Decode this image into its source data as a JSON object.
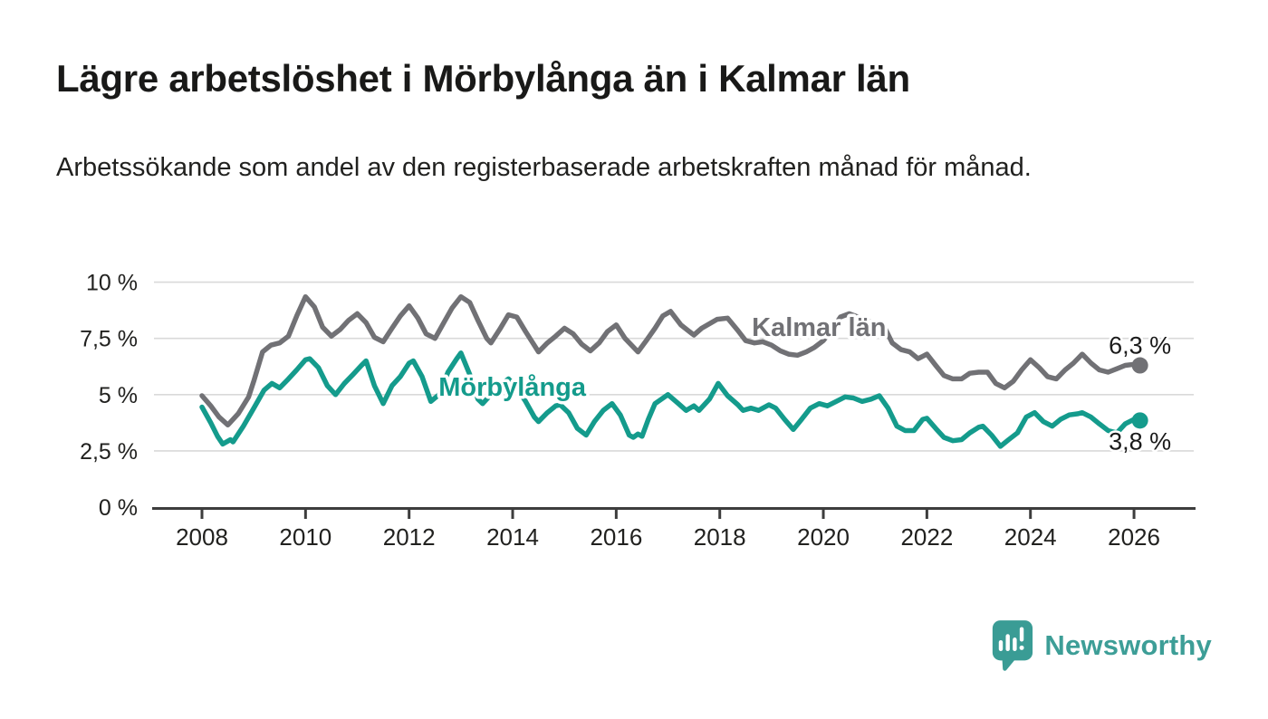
{
  "header": {
    "title": "Lägre arbetslöshet i Mörbylånga än i Kalmar län",
    "subtitle": "Arbetssökande som andel av den registerbaserade arbetskraften månad för månad."
  },
  "footer": {
    "brand_name": "Newsworthy",
    "logo_icon": "bar-chart-speech-bubble-icon"
  },
  "colors": {
    "kalmar_line": "#717175",
    "morbylanga_line": "#149b8c",
    "axis": "#3d3d3d",
    "grid": "#d9d9d9",
    "tick_text": "#21211f",
    "end_label_text": "#1a1a1a",
    "brand": "#3d9e97",
    "background": "#ffffff"
  },
  "chart_data": {
    "type": "line",
    "title": "Lägre arbetslöshet i Mörbylånga än i Kalmar län",
    "xlabel": "",
    "ylabel": "",
    "unit": "%",
    "grid": true,
    "legend_position": "inline-labels",
    "x_axis": {
      "range": [
        2007.1,
        2027.2
      ],
      "ticks": [
        2008,
        2010,
        2012,
        2014,
        2016,
        2018,
        2020,
        2022,
        2024,
        2026
      ]
    },
    "y_axis": {
      "range": [
        0,
        10
      ],
      "ticks": [
        {
          "value": 0,
          "label": "0 %"
        },
        {
          "value": 2.5,
          "label": "2,5 %"
        },
        {
          "value": 5,
          "label": "5 %"
        },
        {
          "value": 7.5,
          "label": "7,5 %"
        },
        {
          "value": 10,
          "label": "10 %"
        }
      ]
    },
    "series": [
      {
        "name": "Kalmar län",
        "color": "#717175",
        "end_label": "6,3 %",
        "end_value": 6.3,
        "end_label_position": "above",
        "label_anchor": {
          "year": 2018.62,
          "value": 7.6
        },
        "points": [
          [
            2008.0,
            4.95
          ],
          [
            2008.17,
            4.5
          ],
          [
            2008.33,
            4.0
          ],
          [
            2008.5,
            3.65
          ],
          [
            2008.7,
            4.15
          ],
          [
            2008.9,
            4.9
          ],
          [
            2009.0,
            5.6
          ],
          [
            2009.17,
            6.9
          ],
          [
            2009.33,
            7.2
          ],
          [
            2009.5,
            7.3
          ],
          [
            2009.67,
            7.6
          ],
          [
            2009.83,
            8.5
          ],
          [
            2010.0,
            9.35
          ],
          [
            2010.17,
            8.9
          ],
          [
            2010.33,
            8.0
          ],
          [
            2010.5,
            7.6
          ],
          [
            2010.67,
            7.9
          ],
          [
            2010.83,
            8.3
          ],
          [
            2011.0,
            8.6
          ],
          [
            2011.17,
            8.2
          ],
          [
            2011.33,
            7.55
          ],
          [
            2011.5,
            7.35
          ],
          [
            2011.67,
            7.95
          ],
          [
            2011.83,
            8.5
          ],
          [
            2012.0,
            8.95
          ],
          [
            2012.17,
            8.4
          ],
          [
            2012.33,
            7.7
          ],
          [
            2012.5,
            7.5
          ],
          [
            2012.67,
            8.2
          ],
          [
            2012.83,
            8.85
          ],
          [
            2013.0,
            9.35
          ],
          [
            2013.17,
            9.1
          ],
          [
            2013.33,
            8.3
          ],
          [
            2013.5,
            7.5
          ],
          [
            2013.58,
            7.3
          ],
          [
            2013.75,
            7.9
          ],
          [
            2013.92,
            8.55
          ],
          [
            2014.08,
            8.45
          ],
          [
            2014.25,
            7.8
          ],
          [
            2014.5,
            6.9
          ],
          [
            2014.67,
            7.3
          ],
          [
            2014.83,
            7.6
          ],
          [
            2015.0,
            7.95
          ],
          [
            2015.17,
            7.7
          ],
          [
            2015.33,
            7.25
          ],
          [
            2015.5,
            6.95
          ],
          [
            2015.67,
            7.3
          ],
          [
            2015.83,
            7.8
          ],
          [
            2016.0,
            8.1
          ],
          [
            2016.17,
            7.5
          ],
          [
            2016.42,
            6.9
          ],
          [
            2016.58,
            7.4
          ],
          [
            2016.75,
            7.95
          ],
          [
            2016.9,
            8.5
          ],
          [
            2017.05,
            8.7
          ],
          [
            2017.25,
            8.1
          ],
          [
            2017.5,
            7.65
          ],
          [
            2017.65,
            7.95
          ],
          [
            2017.95,
            8.35
          ],
          [
            2018.15,
            8.4
          ],
          [
            2018.35,
            7.85
          ],
          [
            2018.5,
            7.4
          ],
          [
            2018.67,
            7.3
          ],
          [
            2018.83,
            7.35
          ],
          [
            2019.0,
            7.2
          ],
          [
            2019.17,
            6.95
          ],
          [
            2019.33,
            6.8
          ],
          [
            2019.5,
            6.75
          ],
          [
            2019.67,
            6.9
          ],
          [
            2019.83,
            7.1
          ],
          [
            2020.0,
            7.4
          ],
          [
            2020.17,
            7.9
          ],
          [
            2020.33,
            8.45
          ],
          [
            2020.5,
            8.6
          ],
          [
            2020.67,
            8.45
          ],
          [
            2020.83,
            8.3
          ],
          [
            2021.0,
            8.15
          ],
          [
            2021.17,
            8.05
          ],
          [
            2021.33,
            7.3
          ],
          [
            2021.5,
            7.0
          ],
          [
            2021.67,
            6.9
          ],
          [
            2021.83,
            6.6
          ],
          [
            2022.0,
            6.8
          ],
          [
            2022.17,
            6.3
          ],
          [
            2022.33,
            5.85
          ],
          [
            2022.5,
            5.7
          ],
          [
            2022.67,
            5.7
          ],
          [
            2022.83,
            5.95
          ],
          [
            2023.0,
            6.0
          ],
          [
            2023.17,
            6.0
          ],
          [
            2023.33,
            5.5
          ],
          [
            2023.5,
            5.3
          ],
          [
            2023.67,
            5.6
          ],
          [
            2023.83,
            6.1
          ],
          [
            2024.0,
            6.55
          ],
          [
            2024.17,
            6.2
          ],
          [
            2024.33,
            5.8
          ],
          [
            2024.5,
            5.7
          ],
          [
            2024.67,
            6.1
          ],
          [
            2024.83,
            6.4
          ],
          [
            2025.0,
            6.8
          ],
          [
            2025.17,
            6.4
          ],
          [
            2025.33,
            6.1
          ],
          [
            2025.5,
            6.0
          ],
          [
            2025.67,
            6.15
          ],
          [
            2025.83,
            6.3
          ],
          [
            2026.0,
            6.35
          ],
          [
            2026.08,
            6.3
          ]
        ]
      },
      {
        "name": "Mörbylånga",
        "color": "#149b8c",
        "end_label": "3,8 %",
        "end_value": 3.8,
        "end_label_position": "below",
        "label_anchor": {
          "year": 2012.57,
          "value": 4.95
        },
        "points": [
          [
            2008.0,
            4.45
          ],
          [
            2008.17,
            3.75
          ],
          [
            2008.3,
            3.15
          ],
          [
            2008.4,
            2.8
          ],
          [
            2008.55,
            3.0
          ],
          [
            2008.6,
            2.9
          ],
          [
            2008.8,
            3.6
          ],
          [
            2009.0,
            4.4
          ],
          [
            2009.2,
            5.2
          ],
          [
            2009.35,
            5.5
          ],
          [
            2009.5,
            5.3
          ],
          [
            2009.67,
            5.7
          ],
          [
            2009.83,
            6.1
          ],
          [
            2010.0,
            6.55
          ],
          [
            2010.08,
            6.6
          ],
          [
            2010.25,
            6.2
          ],
          [
            2010.42,
            5.4
          ],
          [
            2010.58,
            5.0
          ],
          [
            2010.75,
            5.5
          ],
          [
            2010.92,
            5.9
          ],
          [
            2011.08,
            6.3
          ],
          [
            2011.17,
            6.5
          ],
          [
            2011.33,
            5.4
          ],
          [
            2011.5,
            4.6
          ],
          [
            2011.67,
            5.4
          ],
          [
            2011.83,
            5.8
          ],
          [
            2012.0,
            6.4
          ],
          [
            2012.08,
            6.5
          ],
          [
            2012.25,
            5.8
          ],
          [
            2012.42,
            4.7
          ],
          [
            2012.58,
            5.0
          ],
          [
            2012.75,
            6.0
          ],
          [
            2012.92,
            6.6
          ],
          [
            2013.0,
            6.85
          ],
          [
            2013.17,
            5.9
          ],
          [
            2013.33,
            4.8
          ],
          [
            2013.42,
            4.6
          ],
          [
            2013.58,
            5.0
          ],
          [
            2013.75,
            5.4
          ],
          [
            2013.92,
            5.7
          ],
          [
            2014.08,
            5.3
          ],
          [
            2014.25,
            4.7
          ],
          [
            2014.42,
            4.0
          ],
          [
            2014.5,
            3.8
          ],
          [
            2014.67,
            4.2
          ],
          [
            2014.83,
            4.5
          ],
          [
            2014.92,
            4.55
          ],
          [
            2015.08,
            4.2
          ],
          [
            2015.25,
            3.5
          ],
          [
            2015.42,
            3.2
          ],
          [
            2015.58,
            3.8
          ],
          [
            2015.75,
            4.3
          ],
          [
            2015.92,
            4.6
          ],
          [
            2016.08,
            4.1
          ],
          [
            2016.25,
            3.2
          ],
          [
            2016.33,
            3.1
          ],
          [
            2016.42,
            3.25
          ],
          [
            2016.5,
            3.15
          ],
          [
            2016.62,
            3.9
          ],
          [
            2016.75,
            4.6
          ],
          [
            2017.0,
            5.0
          ],
          [
            2017.2,
            4.6
          ],
          [
            2017.35,
            4.3
          ],
          [
            2017.5,
            4.5
          ],
          [
            2017.6,
            4.3
          ],
          [
            2017.8,
            4.8
          ],
          [
            2017.97,
            5.5
          ],
          [
            2018.15,
            4.95
          ],
          [
            2018.35,
            4.55
          ],
          [
            2018.45,
            4.3
          ],
          [
            2018.6,
            4.4
          ],
          [
            2018.75,
            4.3
          ],
          [
            2018.95,
            4.55
          ],
          [
            2019.08,
            4.4
          ],
          [
            2019.25,
            3.9
          ],
          [
            2019.42,
            3.45
          ],
          [
            2019.58,
            3.9
          ],
          [
            2019.75,
            4.4
          ],
          [
            2019.92,
            4.6
          ],
          [
            2020.08,
            4.5
          ],
          [
            2020.25,
            4.7
          ],
          [
            2020.42,
            4.9
          ],
          [
            2020.58,
            4.85
          ],
          [
            2020.75,
            4.7
          ],
          [
            2020.92,
            4.8
          ],
          [
            2021.08,
            4.95
          ],
          [
            2021.25,
            4.4
          ],
          [
            2021.42,
            3.6
          ],
          [
            2021.58,
            3.4
          ],
          [
            2021.75,
            3.4
          ],
          [
            2021.92,
            3.9
          ],
          [
            2022.0,
            3.95
          ],
          [
            2022.17,
            3.5
          ],
          [
            2022.33,
            3.1
          ],
          [
            2022.5,
            2.95
          ],
          [
            2022.67,
            3.0
          ],
          [
            2022.83,
            3.3
          ],
          [
            2023.0,
            3.55
          ],
          [
            2023.08,
            3.6
          ],
          [
            2023.25,
            3.2
          ],
          [
            2023.42,
            2.7
          ],
          [
            2023.58,
            3.0
          ],
          [
            2023.75,
            3.3
          ],
          [
            2023.92,
            4.0
          ],
          [
            2024.08,
            4.2
          ],
          [
            2024.25,
            3.8
          ],
          [
            2024.42,
            3.6
          ],
          [
            2024.58,
            3.9
          ],
          [
            2024.75,
            4.1
          ],
          [
            2024.92,
            4.15
          ],
          [
            2025.0,
            4.2
          ],
          [
            2025.17,
            4.0
          ],
          [
            2025.33,
            3.7
          ],
          [
            2025.5,
            3.4
          ],
          [
            2025.67,
            3.3
          ],
          [
            2025.83,
            3.7
          ],
          [
            2026.0,
            3.9
          ],
          [
            2026.08,
            3.85
          ]
        ]
      }
    ]
  }
}
